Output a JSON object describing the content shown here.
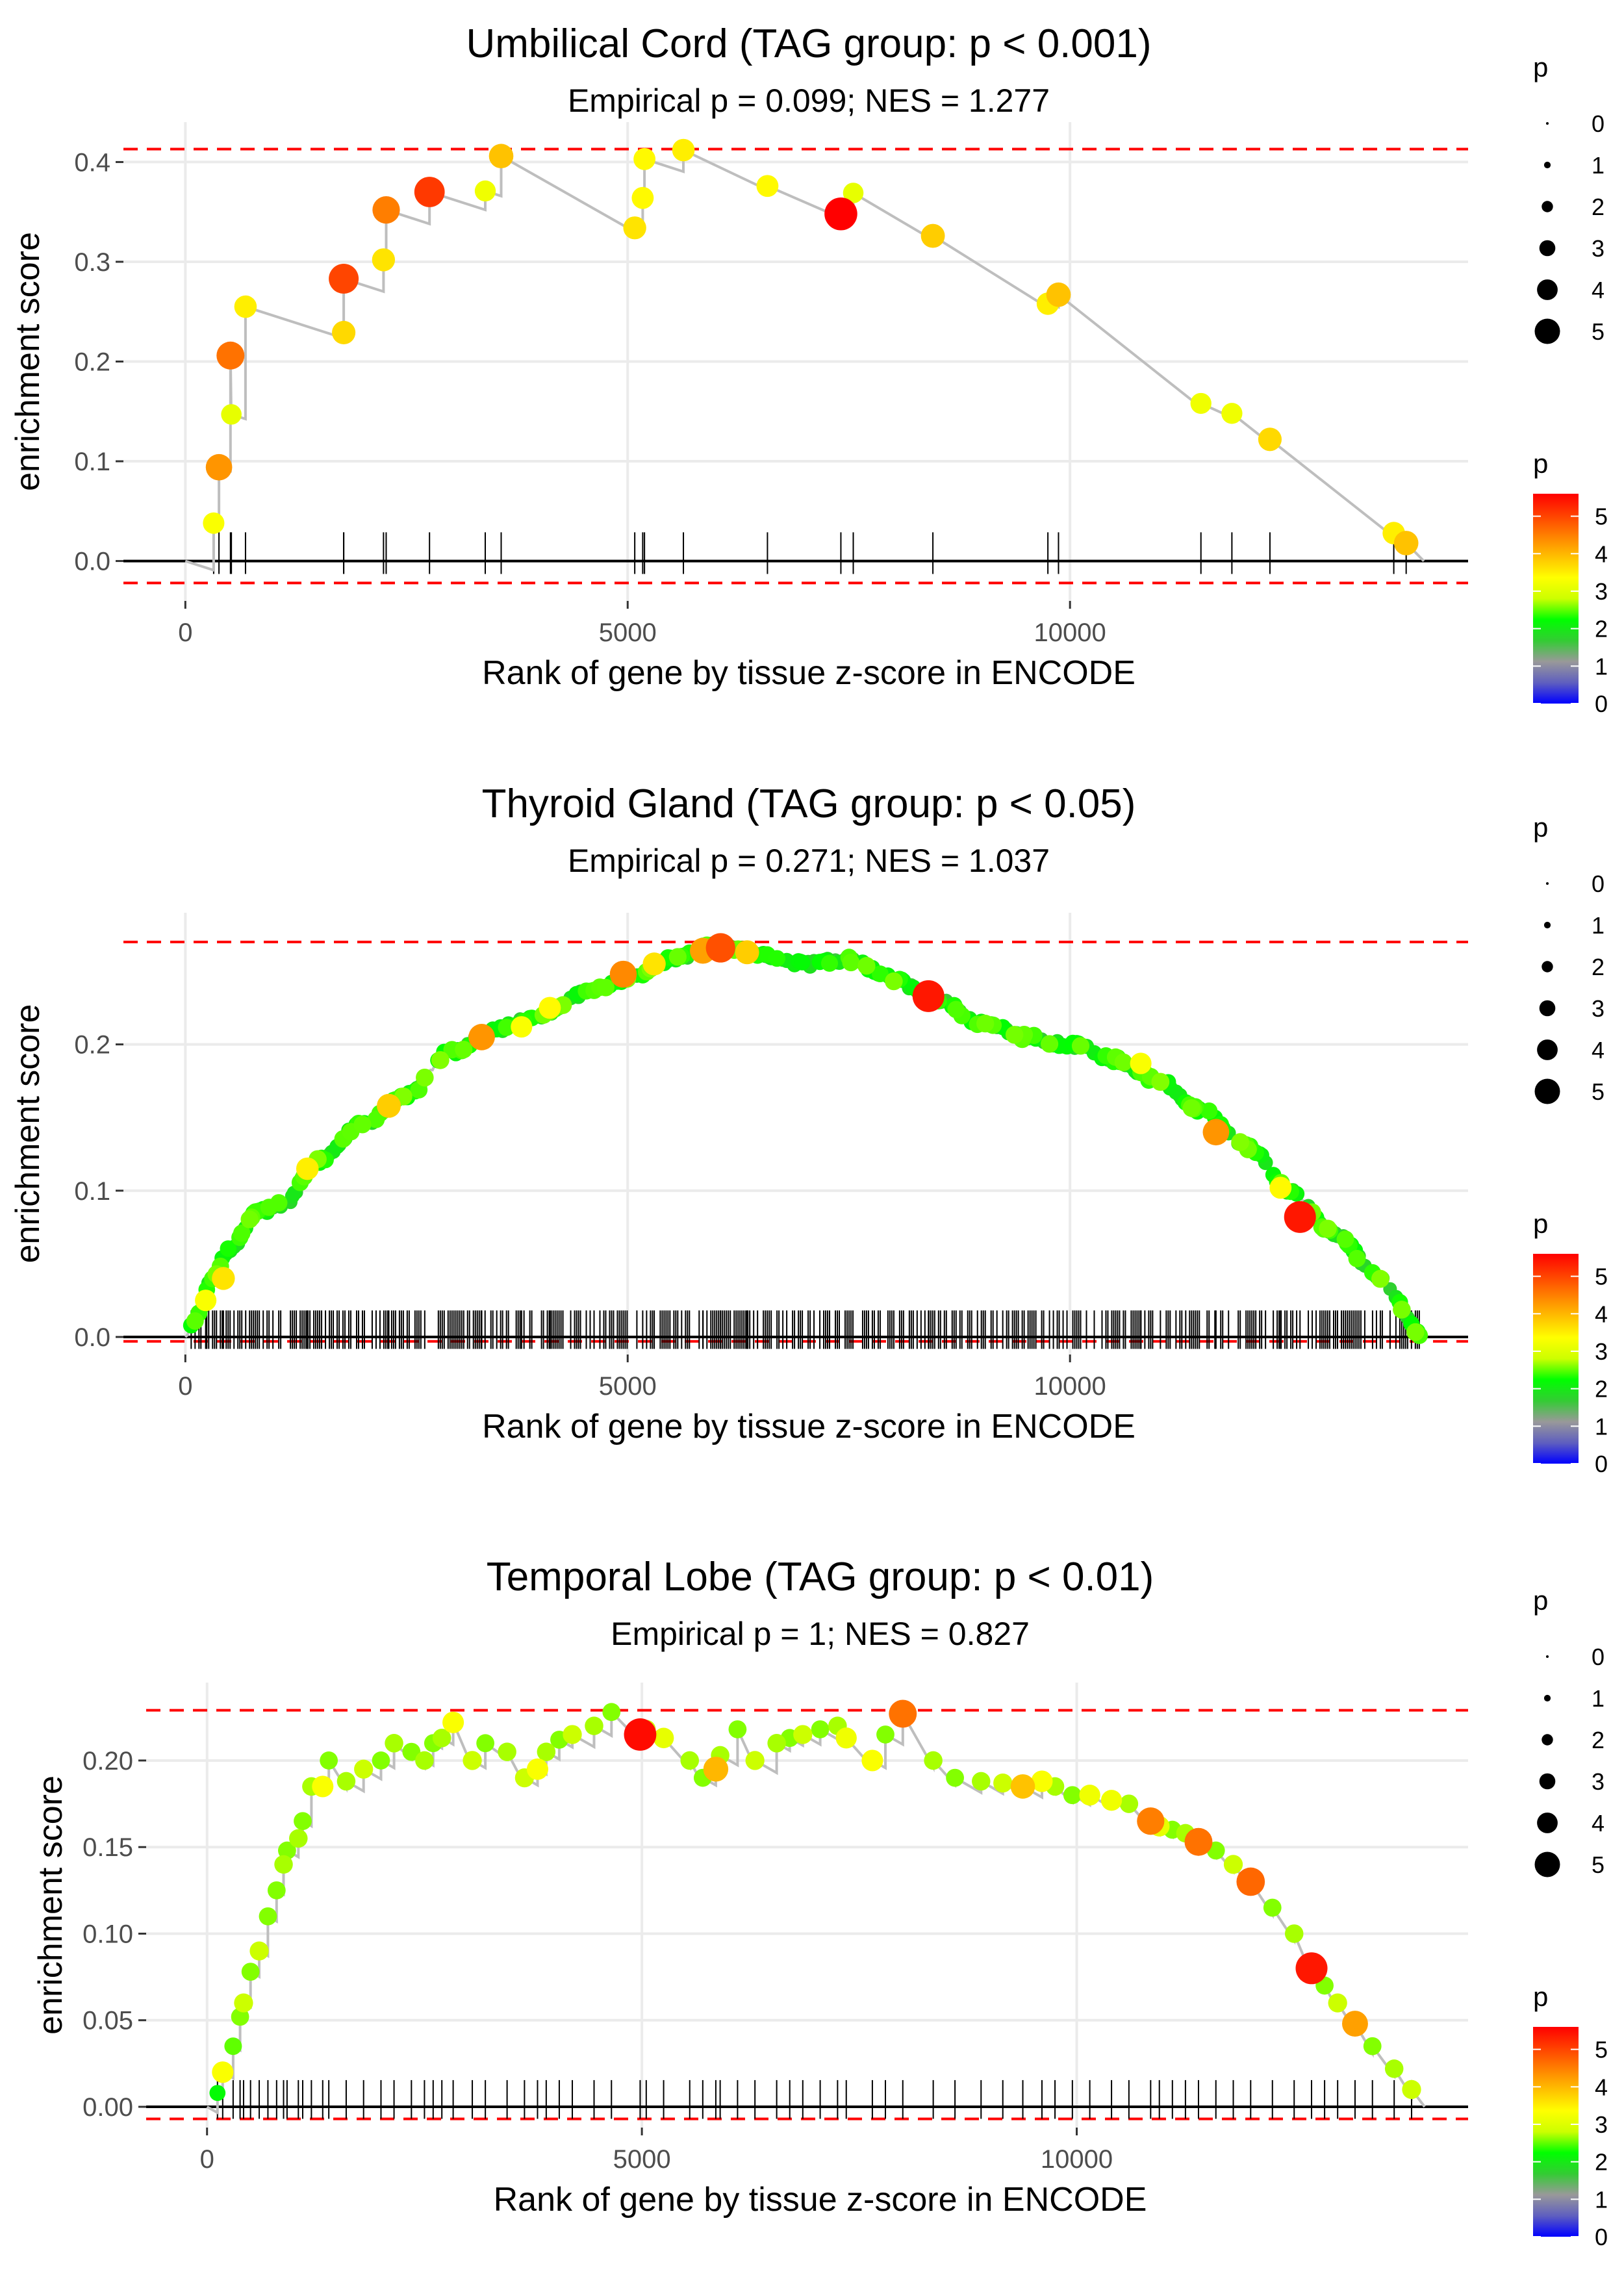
{
  "colors": {
    "panel_bg": "#ffffff",
    "grid": "#ebebeb",
    "zero_line": "#000000",
    "dashed": "#ff0000",
    "es_line": "#bebebe",
    "rug": "#000000",
    "tick_text": "#4d4d4d",
    "text": "#000000",
    "colorbar": [
      "#0000ff",
      "#5f5fbf",
      "#999999",
      "#33cc33",
      "#00ff00",
      "#ccff00",
      "#ffff00",
      "#ffc000",
      "#ff8000",
      "#ff4000",
      "#ff0000"
    ]
  },
  "legend": {
    "size_title": "p",
    "size_labels": [
      "0",
      "1",
      "2",
      "3",
      "4",
      "5"
    ],
    "color_title": "p",
    "color_labels": [
      "0",
      "1",
      "2",
      "3",
      "4",
      "5"
    ],
    "color_range": [
      0,
      5.6
    ]
  },
  "chart_data": [
    {
      "type": "line",
      "title": "Umbilical Cord (TAG group: p < 0.001)",
      "subtitle": "Empirical p = 0.099; NES = 1.277",
      "xlabel": "Rank of gene by tissue z-score in ENCODE",
      "ylabel": "enrichment score",
      "xlim": [
        -700,
        14500
      ],
      "ylim": [
        -0.04,
        0.44
      ],
      "x_ticks": [
        0,
        5000,
        10000
      ],
      "x_tick_labels": [
        "0",
        "5000",
        "10000"
      ],
      "y_ticks": [
        0.0,
        0.1,
        0.2,
        0.3,
        0.4
      ],
      "y_tick_labels": [
        "0.0",
        "0.1",
        "0.2",
        "0.3",
        "0.4"
      ],
      "dashed_hlines": [
        0.413,
        -0.022
      ],
      "sawtooth": true,
      "x_end": 14000,
      "start_y": 0.0,
      "points": [
        [
          320,
          0.038,
          3.3
        ],
        [
          380,
          0.094,
          4.3
        ],
        [
          510,
          0.206,
          4.6
        ],
        [
          520,
          0.147,
          3.1
        ],
        [
          680,
          0.255,
          3.5
        ],
        [
          1790,
          0.229,
          3.7
        ],
        [
          1790,
          0.283,
          5.0
        ],
        [
          2240,
          0.302,
          3.6
        ],
        [
          2270,
          0.352,
          4.5
        ],
        [
          2760,
          0.37,
          5.1
        ],
        [
          3390,
          0.371,
          3.2
        ],
        [
          3570,
          0.406,
          3.9
        ],
        [
          5080,
          0.334,
          3.6
        ],
        [
          5170,
          0.364,
          3.4
        ],
        [
          5190,
          0.403,
          3.4
        ],
        [
          5630,
          0.412,
          3.5
        ],
        [
          6580,
          0.376,
          3.4
        ],
        [
          7410,
          0.348,
          5.6
        ],
        [
          7550,
          0.369,
          3.1
        ],
        [
          8450,
          0.326,
          3.8
        ],
        [
          9750,
          0.258,
          3.5
        ],
        [
          9870,
          0.267,
          3.9
        ],
        [
          11480,
          0.158,
          3.2
        ],
        [
          11830,
          0.148,
          3.2
        ],
        [
          12260,
          0.122,
          3.7
        ],
        [
          13660,
          0.028,
          3.5
        ],
        [
          13800,
          0.018,
          3.9
        ]
      ]
    },
    {
      "type": "line",
      "title": "Thyroid Gland (TAG group: p < 0.05)",
      "subtitle": "Empirical p = 0.271; NES = 1.037",
      "xlabel": "Rank of gene by tissue z-score in ENCODE",
      "ylabel": "enrichment score",
      "xlim": [
        -700,
        14500
      ],
      "ylim": [
        -0.012,
        0.29
      ],
      "x_ticks": [
        0,
        5000,
        10000
      ],
      "x_tick_labels": [
        "0",
        "5000",
        "10000"
      ],
      "y_ticks": [
        0.0,
        0.1,
        0.2
      ],
      "y_tick_labels": [
        "0.0",
        "0.1",
        "0.2"
      ],
      "dashed_hlines": [
        0.27,
        -0.003
      ],
      "sawtooth": false,
      "x_end": 14000,
      "curve_knots": [
        [
          0,
          0.0
        ],
        [
          100,
          0.01
        ],
        [
          300,
          0.04
        ],
        [
          500,
          0.06
        ],
        [
          800,
          0.085
        ],
        [
          1100,
          0.09
        ],
        [
          1500,
          0.12
        ],
        [
          2000,
          0.145
        ],
        [
          2500,
          0.165
        ],
        [
          3000,
          0.195
        ],
        [
          3500,
          0.21
        ],
        [
          4000,
          0.22
        ],
        [
          4500,
          0.235
        ],
        [
          5000,
          0.245
        ],
        [
          5500,
          0.258
        ],
        [
          6000,
          0.268
        ],
        [
          6500,
          0.262
        ],
        [
          7000,
          0.255
        ],
        [
          7500,
          0.258
        ],
        [
          8000,
          0.245
        ],
        [
          8500,
          0.23
        ],
        [
          9000,
          0.215
        ],
        [
          9500,
          0.205
        ],
        [
          10000,
          0.2
        ],
        [
          10500,
          0.19
        ],
        [
          11000,
          0.175
        ],
        [
          11500,
          0.155
        ],
        [
          12000,
          0.13
        ],
        [
          12500,
          0.1
        ],
        [
          13000,
          0.07
        ],
        [
          13500,
          0.04
        ],
        [
          14000,
          0.0
        ]
      ],
      "highlight_points": [
        [
          230,
          0.025,
          3.3
        ],
        [
          430,
          0.04,
          3.6
        ],
        [
          1380,
          0.115,
          3.5
        ],
        [
          2300,
          0.158,
          3.8
        ],
        [
          3350,
          0.205,
          4.3
        ],
        [
          3800,
          0.212,
          3.3
        ],
        [
          4120,
          0.225,
          3.4
        ],
        [
          4950,
          0.248,
          4.4
        ],
        [
          5300,
          0.255,
          3.6
        ],
        [
          5850,
          0.264,
          4.2
        ],
        [
          6050,
          0.266,
          4.9
        ],
        [
          6350,
          0.263,
          3.8
        ],
        [
          8400,
          0.233,
          5.4
        ],
        [
          10800,
          0.187,
          3.3
        ],
        [
          11650,
          0.14,
          4.3
        ],
        [
          12380,
          0.102,
          3.4
        ],
        [
          12600,
          0.082,
          5.4
        ]
      ]
    },
    {
      "type": "line",
      "title": "Temporal Lobe (TAG group: p < 0.01)",
      "subtitle": "Empirical p = 1; NES = 0.827",
      "xlabel": "Rank of gene by tissue z-score in ENCODE",
      "ylabel": "enrichment score",
      "xlim": [
        -700,
        14500
      ],
      "ylim": [
        -0.012,
        0.245
      ],
      "x_ticks": [
        0,
        5000,
        10000
      ],
      "x_tick_labels": [
        "0",
        "5000",
        "10000"
      ],
      "y_ticks": [
        0.0,
        0.05,
        0.1,
        0.15,
        0.2
      ],
      "y_tick_labels": [
        "0.00",
        "0.05",
        "0.10",
        "0.15",
        "0.20"
      ],
      "dashed_hlines": [
        0.229,
        -0.007
      ],
      "sawtooth": true,
      "x_end": 14000,
      "start_y": 0.0,
      "points": [
        [
          120,
          0.008,
          2.2
        ],
        [
          180,
          0.02,
          3.3
        ],
        [
          300,
          0.035,
          2.5
        ],
        [
          380,
          0.052,
          2.6
        ],
        [
          420,
          0.06,
          2.8
        ],
        [
          500,
          0.078,
          2.6
        ],
        [
          600,
          0.09,
          2.8
        ],
        [
          700,
          0.11,
          2.6
        ],
        [
          800,
          0.125,
          2.6
        ],
        [
          880,
          0.14,
          2.7
        ],
        [
          920,
          0.148,
          2.6
        ],
        [
          1050,
          0.155,
          2.7
        ],
        [
          1100,
          0.165,
          2.6
        ],
        [
          1200,
          0.185,
          2.7
        ],
        [
          1330,
          0.185,
          3.3
        ],
        [
          1400,
          0.2,
          2.6
        ],
        [
          1600,
          0.188,
          2.7
        ],
        [
          1800,
          0.195,
          2.8
        ],
        [
          2000,
          0.2,
          2.6
        ],
        [
          2150,
          0.21,
          2.7
        ],
        [
          2350,
          0.205,
          2.6
        ],
        [
          2500,
          0.2,
          2.7
        ],
        [
          2600,
          0.21,
          2.6
        ],
        [
          2700,
          0.213,
          2.7
        ],
        [
          2830,
          0.222,
          3.3
        ],
        [
          3050,
          0.2,
          2.8
        ],
        [
          3200,
          0.21,
          2.6
        ],
        [
          3450,
          0.205,
          2.7
        ],
        [
          3650,
          0.19,
          2.8
        ],
        [
          3800,
          0.195,
          3.3
        ],
        [
          3900,
          0.205,
          2.7
        ],
        [
          4050,
          0.212,
          2.6
        ],
        [
          4200,
          0.215,
          2.8
        ],
        [
          4450,
          0.22,
          2.7
        ],
        [
          4650,
          0.228,
          2.6
        ],
        [
          4980,
          0.215,
          5.5
        ],
        [
          5050,
          0.218,
          2.8
        ],
        [
          5250,
          0.213,
          3.1
        ],
        [
          5550,
          0.2,
          2.7
        ],
        [
          5700,
          0.19,
          2.6
        ],
        [
          5850,
          0.195,
          4.0
        ],
        [
          5900,
          0.203,
          2.7
        ],
        [
          6100,
          0.218,
          2.6
        ],
        [
          6300,
          0.2,
          2.8
        ],
        [
          6550,
          0.21,
          2.7
        ],
        [
          6700,
          0.213,
          2.6
        ],
        [
          6850,
          0.215,
          2.8
        ],
        [
          7050,
          0.218,
          2.6
        ],
        [
          7250,
          0.22,
          2.7
        ],
        [
          7350,
          0.213,
          3.2
        ],
        [
          7650,
          0.2,
          3.3
        ],
        [
          7800,
          0.215,
          2.6
        ],
        [
          8000,
          0.227,
          4.6
        ],
        [
          8350,
          0.2,
          2.7
        ],
        [
          8600,
          0.19,
          2.6
        ],
        [
          8900,
          0.188,
          2.7
        ],
        [
          9150,
          0.187,
          2.8
        ],
        [
          9380,
          0.185,
          3.9
        ],
        [
          9600,
          0.188,
          3.3
        ],
        [
          9750,
          0.185,
          2.7
        ],
        [
          9950,
          0.18,
          2.6
        ],
        [
          10150,
          0.18,
          3.2
        ],
        [
          10400,
          0.177,
          3.2
        ],
        [
          10600,
          0.175,
          2.7
        ],
        [
          10850,
          0.165,
          4.5
        ],
        [
          10950,
          0.162,
          3.1
        ],
        [
          11100,
          0.16,
          2.6
        ],
        [
          11250,
          0.158,
          2.7
        ],
        [
          11400,
          0.153,
          4.6
        ],
        [
          11600,
          0.148,
          2.6
        ],
        [
          11800,
          0.14,
          2.8
        ],
        [
          12000,
          0.13,
          4.7
        ],
        [
          12250,
          0.115,
          2.6
        ],
        [
          12500,
          0.1,
          2.7
        ],
        [
          12700,
          0.08,
          5.4
        ],
        [
          12850,
          0.07,
          2.6
        ],
        [
          13000,
          0.06,
          2.8
        ],
        [
          13200,
          0.048,
          4.2
        ],
        [
          13400,
          0.035,
          2.6
        ],
        [
          13650,
          0.022,
          2.7
        ],
        [
          13850,
          0.01,
          2.8
        ]
      ]
    }
  ]
}
